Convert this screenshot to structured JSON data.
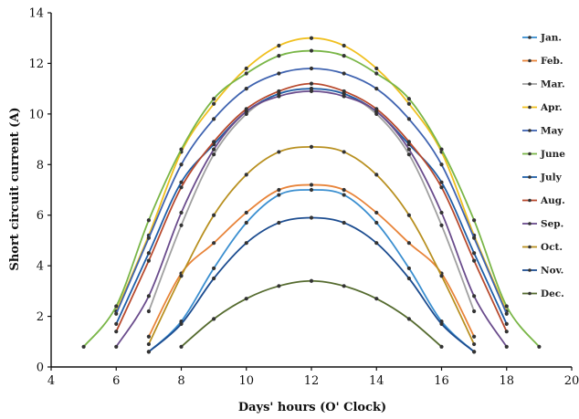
{
  "chart_data": {
    "type": "line",
    "xlabel": "Days' hours (O' Clock)",
    "ylabel": "Short circuit current (A)",
    "xlim": [
      4,
      20
    ],
    "ylim": [
      0,
      14
    ],
    "xticks": [
      4,
      6,
      8,
      10,
      12,
      14,
      16,
      18,
      20
    ],
    "yticks": [
      0,
      2,
      4,
      6,
      8,
      10,
      12,
      14
    ],
    "xtick_labels": [
      "4",
      "6",
      "8",
      "10",
      "12",
      "14",
      "16",
      "18",
      "20"
    ],
    "ytick_labels": [
      "0",
      "2",
      "4",
      "6",
      "8",
      "10",
      "12",
      "14"
    ],
    "legend_position": "right",
    "series": [
      {
        "name": "Jan.",
        "color": "#3b8fd0",
        "x": [
          7,
          8,
          9,
          10,
          11,
          12,
          13,
          14,
          15,
          16,
          17
        ],
        "y": [
          0.6,
          1.8,
          3.9,
          5.7,
          6.8,
          7.0,
          6.8,
          5.7,
          3.9,
          1.8,
          0.6
        ]
      },
      {
        "name": "Feb.",
        "color": "#e8843a",
        "x": [
          7,
          8,
          9,
          10,
          11,
          12,
          13,
          14,
          15,
          16,
          17
        ],
        "y": [
          1.2,
          3.7,
          4.9,
          6.1,
          7.0,
          7.2,
          7.0,
          6.1,
          4.9,
          3.7,
          1.2
        ]
      },
      {
        "name": "Mar.",
        "color": "#a0a0a0",
        "x": [
          7,
          8,
          9,
          10,
          11,
          12,
          13,
          14,
          15,
          16,
          17
        ],
        "y": [
          2.2,
          5.6,
          8.4,
          10.0,
          10.8,
          11.0,
          10.8,
          10.0,
          8.4,
          5.6,
          2.2
        ]
      },
      {
        "name": "Apr.",
        "color": "#f0c020",
        "x": [
          6,
          7,
          8,
          9,
          10,
          11,
          12,
          13,
          14,
          15,
          16,
          17,
          18
        ],
        "y": [
          2.2,
          5.2,
          8.5,
          10.4,
          11.8,
          12.7,
          13.0,
          12.7,
          11.8,
          10.4,
          8.5,
          5.2,
          2.2
        ]
      },
      {
        "name": "May",
        "color": "#3f63b0",
        "x": [
          6,
          7,
          8,
          9,
          10,
          11,
          12,
          13,
          14,
          15,
          16,
          17,
          18
        ],
        "y": [
          2.1,
          5.1,
          8.0,
          9.8,
          11.0,
          11.6,
          11.8,
          11.6,
          11.0,
          9.8,
          8.0,
          5.1,
          2.1
        ]
      },
      {
        "name": "June",
        "color": "#7ab648",
        "x": [
          5,
          6,
          7,
          8,
          9,
          10,
          11,
          12,
          13,
          14,
          15,
          16,
          17,
          18,
          19
        ],
        "y": [
          0.8,
          2.4,
          5.8,
          8.6,
          10.6,
          11.6,
          12.3,
          12.5,
          12.3,
          11.6,
          10.6,
          8.6,
          5.8,
          2.4,
          0.8
        ]
      },
      {
        "name": "July",
        "color": "#1f5fa8",
        "x": [
          6,
          7,
          8,
          9,
          10,
          11,
          12,
          13,
          14,
          15,
          16,
          17,
          18
        ],
        "y": [
          1.7,
          4.5,
          7.3,
          8.8,
          10.1,
          10.8,
          11.0,
          10.8,
          10.1,
          8.8,
          7.3,
          4.5,
          1.7
        ]
      },
      {
        "name": "Aug.",
        "color": "#b84a2e",
        "x": [
          6,
          7,
          8,
          9,
          10,
          11,
          12,
          13,
          14,
          15,
          16,
          17,
          18
        ],
        "y": [
          1.4,
          4.2,
          7.1,
          8.9,
          10.2,
          10.9,
          11.2,
          10.9,
          10.2,
          8.9,
          7.1,
          4.2,
          1.4
        ]
      },
      {
        "name": "Sep.",
        "color": "#6a4c8c",
        "x": [
          6,
          7,
          8,
          9,
          10,
          11,
          12,
          13,
          14,
          15,
          16,
          17,
          18
        ],
        "y": [
          0.8,
          2.8,
          6.1,
          8.6,
          10.1,
          10.7,
          10.9,
          10.7,
          10.1,
          8.6,
          6.1,
          2.8,
          0.8
        ]
      },
      {
        "name": "Oct.",
        "color": "#b89020",
        "x": [
          7,
          8,
          9,
          10,
          11,
          12,
          13,
          14,
          15,
          16,
          17
        ],
        "y": [
          0.9,
          3.6,
          6.0,
          7.6,
          8.5,
          8.7,
          8.5,
          7.6,
          6.0,
          3.6,
          0.9
        ]
      },
      {
        "name": "Nov.",
        "color": "#1d4d90",
        "x": [
          7,
          8,
          9,
          10,
          11,
          12,
          13,
          14,
          15,
          16,
          17
        ],
        "y": [
          0.6,
          1.7,
          3.5,
          4.9,
          5.7,
          5.9,
          5.7,
          4.9,
          3.5,
          1.7,
          0.6
        ]
      },
      {
        "name": "Dec.",
        "color": "#556b2f",
        "x": [
          8,
          9,
          10,
          11,
          12,
          13,
          14,
          15,
          16
        ],
        "y": [
          0.8,
          1.9,
          2.7,
          3.2,
          3.4,
          3.2,
          2.7,
          1.9,
          0.8
        ]
      }
    ]
  }
}
